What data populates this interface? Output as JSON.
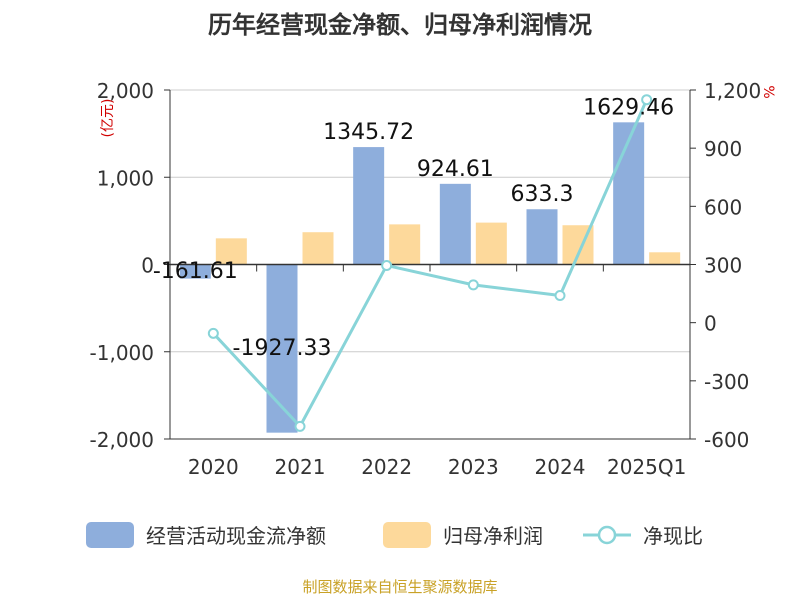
{
  "chart_data": {
    "type": "bar",
    "title": "历年经营现金净额、归母净利润情况",
    "categories": [
      "2020",
      "2021",
      "2022",
      "2023",
      "2024",
      "2025Q1"
    ],
    "y_left_label": "(亿元)",
    "y_right_label": "%",
    "y_left_range": [
      -2000,
      2000
    ],
    "y_right_range": [
      -600,
      1200
    ],
    "y_left_ticks": [
      "2,000",
      "1,000",
      "0",
      "-1,000",
      "-2,000"
    ],
    "y_right_ticks": [
      "1,200",
      "900",
      "600",
      "300",
      "0",
      "-300",
      "-600"
    ],
    "grid": true,
    "legend_position": "bottom",
    "series": [
      {
        "name": "经营活动现金流净额",
        "kind": "bar",
        "axis": "left",
        "color": "#8eaedc",
        "values": [
          -161.61,
          -1927.33,
          1345.72,
          924.61,
          633.3,
          1629.46
        ],
        "labels": [
          "-161.61",
          "-1927.33",
          "1345.72",
          "924.61",
          "633.3",
          "1629.46"
        ]
      },
      {
        "name": "归母净利润",
        "kind": "bar",
        "axis": "left",
        "color": "#fdd99b",
        "values": [
          300,
          370,
          460,
          480,
          450,
          140
        ]
      },
      {
        "name": "净现比",
        "kind": "line",
        "axis": "right",
        "color": "#88d4d8",
        "values": [
          -55,
          -535,
          295,
          195,
          140,
          1150
        ]
      }
    ]
  },
  "source_text": "制图数据来自恒生聚源数据库"
}
